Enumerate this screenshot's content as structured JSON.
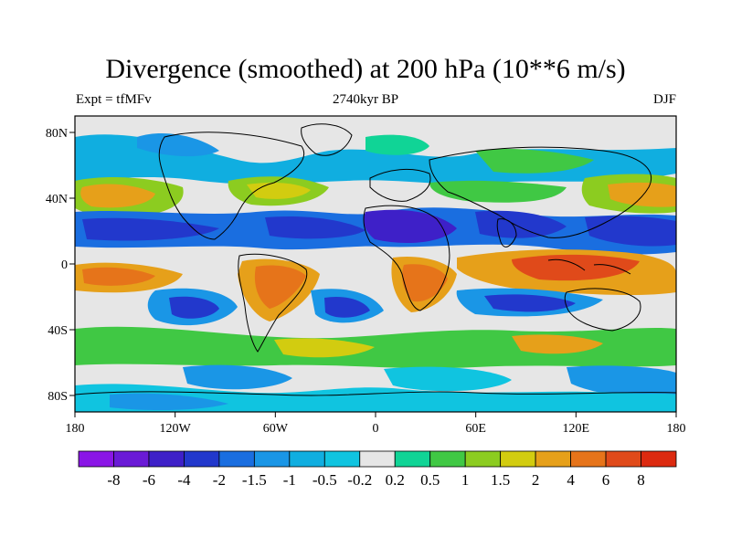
{
  "title": "Divergence (smoothed) at 200 hPa (10**6 m/s)",
  "left_label": "Expt = tfMFv",
  "center_label": "2740kyr BP",
  "right_label": "DJF",
  "map": {
    "lon_ticks": [
      "180",
      "120W",
      "60W",
      "0",
      "60E",
      "120E",
      "180"
    ],
    "lat_ticks": [
      "80N",
      "40N",
      "0",
      "40S",
      "80S"
    ],
    "background": "#e6e6e6",
    "land_outline": "#000000"
  },
  "colorbar": {
    "labels": [
      "-8",
      "-6",
      "-4",
      "-2",
      "-1.5",
      "-1",
      "-0.5",
      "-0.2",
      "0.2",
      "0.5",
      "1",
      "1.5",
      "2",
      "4",
      "6",
      "8"
    ],
    "colors": [
      "#8a16e6",
      "#6a1ad6",
      "#3e20c8",
      "#2238cc",
      "#1a6ee0",
      "#1a96e6",
      "#10aee0",
      "#10c4e0",
      "#e6e6e6",
      "#10d496",
      "#40c844",
      "#8ccc20",
      "#d2cc10",
      "#e6a01a",
      "#e6741a",
      "#e04a1a",
      "#dc2a10"
    ]
  }
}
